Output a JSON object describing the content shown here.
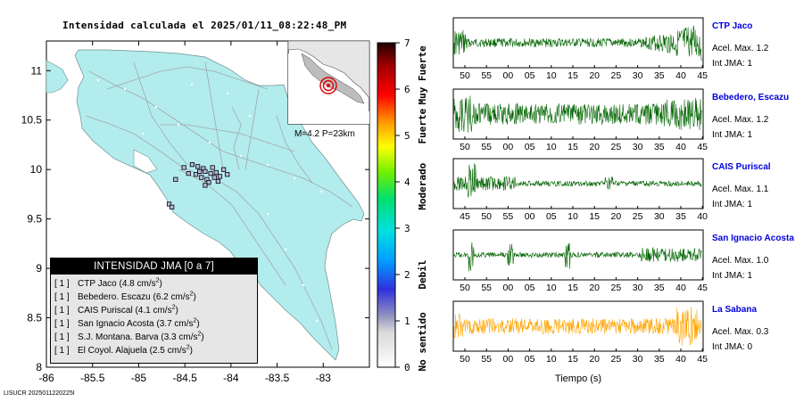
{
  "title": "Intensidad calculada el 2025/01/11_08:22:48_PM",
  "footer": "LISUCR 2025011220225I",
  "map": {
    "lat_ticks": [
      "11",
      "10.5",
      "10",
      "9.5",
      "9",
      "8.5",
      "8"
    ],
    "lon_ticks": [
      "-86",
      "-85.5",
      "-85",
      "-84.5",
      "-84",
      "-83.5",
      "-83"
    ],
    "land_color": "#b3ecec",
    "stations": [
      {
        "lon": -84.51,
        "lat": 10.02
      },
      {
        "lon": -84.42,
        "lat": 10.05
      },
      {
        "lon": -84.36,
        "lat": 10.03
      },
      {
        "lon": -84.3,
        "lat": 10.01
      },
      {
        "lon": -84.46,
        "lat": 9.96
      },
      {
        "lon": -84.38,
        "lat": 9.95
      },
      {
        "lon": -84.28,
        "lat": 9.98
      },
      {
        "lon": -84.22,
        "lat": 9.96
      },
      {
        "lon": -84.16,
        "lat": 9.97
      },
      {
        "lon": -84.08,
        "lat": 10.0
      },
      {
        "lon": -84.32,
        "lat": 9.92
      },
      {
        "lon": -84.26,
        "lat": 9.9
      },
      {
        "lon": -84.18,
        "lat": 9.92
      },
      {
        "lon": -84.12,
        "lat": 9.93
      },
      {
        "lon": -84.04,
        "lat": 9.95
      },
      {
        "lon": -84.6,
        "lat": 9.9
      },
      {
        "lon": -84.24,
        "lat": 9.87
      },
      {
        "lon": -84.14,
        "lat": 9.88
      },
      {
        "lon": -84.28,
        "lat": 9.84
      },
      {
        "lon": -84.67,
        "lat": 9.65
      },
      {
        "lon": -84.64,
        "lat": 9.62
      },
      {
        "lon": -84.34,
        "lat": 9.98
      },
      {
        "lon": -84.2,
        "lat": 10.02
      }
    ],
    "inset_caption": "M=4.2 P=23km"
  },
  "legend": {
    "title": "INTENSIDAD JMA [0 a 7]",
    "items": [
      {
        "intensity": "[ 1 ]",
        "label": "CTP Jaco (4.8 cm/s",
        "unit_sup": "2",
        "close": ")"
      },
      {
        "intensity": "[ 1 ]",
        "label": "Bebedero. Escazu (6.2 cm/s",
        "unit_sup": "2",
        "close": ")"
      },
      {
        "intensity": "[ 1 ]",
        "label": "CAIS Puriscal (4.1 cm/s",
        "unit_sup": "2",
        "close": ")"
      },
      {
        "intensity": "[ 1 ]",
        "label": "San Ignacio Acosta (3.7 cm/s",
        "unit_sup": "2",
        "close": ")"
      },
      {
        "intensity": "[ 1 ]",
        "label": "S.J. Montana. Barva (3.3 cm/s",
        "unit_sup": "2",
        "close": ")"
      },
      {
        "intensity": "[ 1 ]",
        "label": "El Coyol. Alajuela (2.5 cm/s",
        "unit_sup": "2",
        "close": ")"
      }
    ]
  },
  "scale": {
    "ticks": [
      "0",
      "1",
      "2",
      "3",
      "4",
      "5",
      "6",
      "7"
    ],
    "category_labels": [
      {
        "text": "No sentido",
        "level": 0.55
      },
      {
        "text": "Debil",
        "level": 2.0
      },
      {
        "text": "Moderado",
        "level": 3.9
      },
      {
        "text": "Fuerte",
        "level": 5.2
      },
      {
        "text": "Muy Fuerte",
        "level": 6.3
      }
    ]
  },
  "seismograms": {
    "xlabel": "Tiempo (s)",
    "traces": [
      {
        "station": "CTP Jaco",
        "accel": "Acel. Max. 1.2",
        "jma": "Int JMA: 1",
        "color": "#006400",
        "ticks": [
          "50",
          "55",
          "00",
          "05",
          "10",
          "15",
          "20",
          "25",
          "30",
          "35",
          "40",
          "45"
        ],
        "tick_offset": 0
      },
      {
        "station": "Bebedero, Escazu",
        "accel": "Acel. Max. 1.2",
        "jma": "Int JMA: 1",
        "color": "#006400",
        "ticks": [
          "50",
          "55",
          "00",
          "05",
          "10",
          "15",
          "20",
          "25",
          "30",
          "35",
          "40",
          "45"
        ],
        "tick_offset": 0
      },
      {
        "station": "CAIS Puriscal",
        "accel": "Acel. Max. 1.1",
        "jma": "Int JMA: 1",
        "color": "#006400",
        "ticks": [
          "45",
          "50",
          "55",
          "00",
          "05",
          "10",
          "15",
          "20",
          "25",
          "30",
          "35",
          "40"
        ],
        "tick_offset": 0
      },
      {
        "station": "San Ignacio Acosta",
        "accel": "Acel. Max. 1.0",
        "jma": "Int JMA: 1",
        "color": "#006400",
        "ticks": [
          "50",
          "55",
          "00",
          "05",
          "10",
          "15",
          "20",
          "25",
          "30",
          "35",
          "40",
          "45"
        ],
        "tick_offset": 0
      },
      {
        "station": "La Sabana",
        "accel": "Acel. Max. 0.3",
        "jma": "Int JMA: 0",
        "color": "#ffa500",
        "ticks": [
          "50",
          "55",
          "00",
          "05",
          "10",
          "15",
          "20",
          "25",
          "30",
          "35",
          "40",
          "45"
        ],
        "tick_offset": 0
      }
    ]
  }
}
